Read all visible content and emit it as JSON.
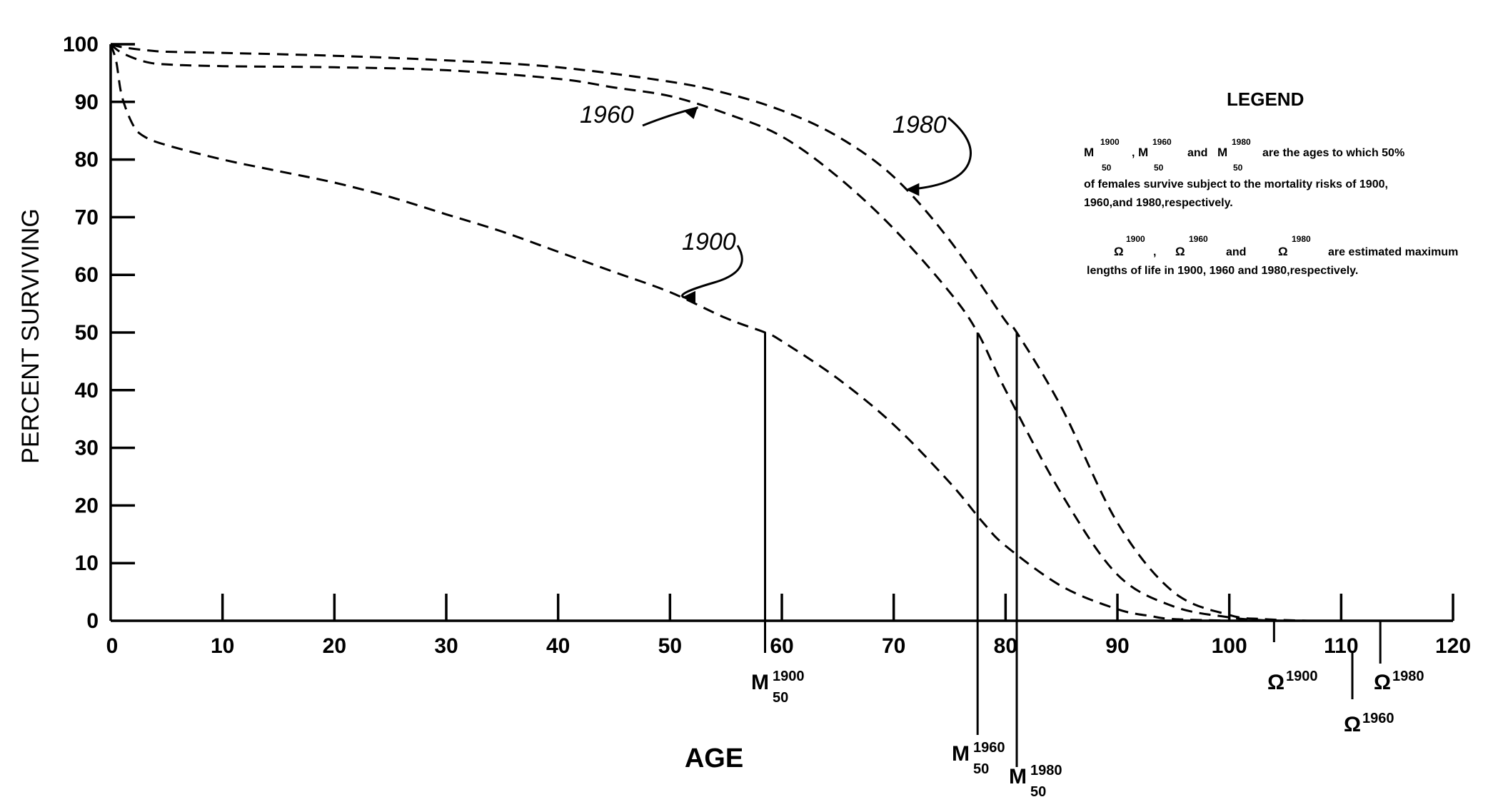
{
  "chart_data": {
    "type": "line",
    "xlabel": "AGE",
    "ylabel": "PERCENT SURVIVING",
    "xlim": [
      0,
      120
    ],
    "ylim": [
      0,
      100
    ],
    "x_ticks": [
      "0",
      "10",
      "20",
      "30",
      "40",
      "50",
      "60",
      "70",
      "80",
      "90",
      "100",
      "110",
      "120"
    ],
    "y_ticks": [
      "0",
      "10",
      "20",
      "30",
      "40",
      "50",
      "60",
      "70",
      "80",
      "90",
      "100"
    ],
    "grid": false,
    "line_style": "dashed",
    "series": [
      {
        "name": "1900",
        "x": [
          0,
          0.5,
          1,
          2,
          3,
          5,
          10,
          15,
          20,
          25,
          30,
          35,
          40,
          45,
          50,
          55,
          58.5,
          60,
          65,
          70,
          75,
          78,
          80,
          85,
          90,
          93,
          95,
          100
        ],
        "y": [
          100,
          97,
          91,
          86,
          84,
          82.5,
          80,
          78,
          76,
          73.5,
          70.5,
          67.5,
          64,
          60.5,
          57,
          52.5,
          50,
          48.5,
          42,
          34,
          24,
          17,
          13,
          6,
          2,
          0.8,
          0.3,
          0
        ]
      },
      {
        "name": "1960",
        "x": [
          0,
          1,
          3,
          5,
          10,
          20,
          30,
          40,
          45,
          50,
          55,
          60,
          65,
          70,
          75,
          77.5,
          80,
          85,
          90,
          95,
          100,
          103,
          105
        ],
        "y": [
          100,
          98.5,
          97,
          96.5,
          96.2,
          96,
          95.5,
          94,
          92.5,
          91,
          88,
          84,
          77,
          68,
          57,
          50,
          40,
          22,
          8,
          2.5,
          0.6,
          0.1,
          0
        ]
      },
      {
        "name": "1980",
        "x": [
          0,
          1,
          3,
          5,
          10,
          20,
          30,
          40,
          50,
          55,
          60,
          65,
          70,
          75,
          80,
          81,
          85,
          90,
          95,
          100,
          103,
          107
        ],
        "y": [
          100,
          99.5,
          99,
          98.7,
          98.5,
          98,
          97.2,
          96,
          93.5,
          91.5,
          88.5,
          84,
          77,
          66,
          52,
          50,
          37,
          17,
          5,
          1,
          0.3,
          0
        ]
      }
    ],
    "curve_labels": [
      {
        "text": "1960",
        "series": "1960"
      },
      {
        "text": "1980",
        "series": "1980"
      },
      {
        "text": "1900",
        "series": "1900"
      }
    ],
    "markers": [
      {
        "symbol": "M",
        "sup": "1900",
        "sub": "50",
        "x": 58.5,
        "y": 50
      },
      {
        "symbol": "M",
        "sup": "1960",
        "sub": "50",
        "x": 77.5,
        "y": 50
      },
      {
        "symbol": "M",
        "sup": "1980",
        "sub": "50",
        "x": 81,
        "y": 50
      },
      {
        "symbol": "Ω",
        "sup": "1900",
        "x": 104
      },
      {
        "symbol": "Ω",
        "sup": "1960",
        "x": 111
      },
      {
        "symbol": "Ω",
        "sup": "1980",
        "x": 113.5
      }
    ],
    "legend": {
      "title": "LEGEND",
      "m_symbol": "M",
      "sub": "50",
      "sup_1900": "1900",
      "sup_1960": "1960",
      "sup_1980": "1980",
      "comma": ",",
      "and": "and",
      "line1_tail": "are the ages to which 50%",
      "line2": "of females survive subject to the mortality risks of 1900,",
      "line3": "1960,and 1980,respectively.",
      "omega_symbol": "Ω",
      "line4_tail": "are estimated maximum",
      "line5": "lengths of life in 1900, 1960 and 1980,respectively."
    }
  }
}
